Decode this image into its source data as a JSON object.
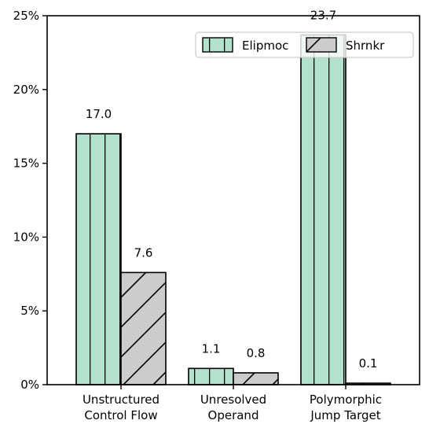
{
  "chart_data": {
    "type": "bar",
    "categories": [
      "Unstructured\nControl Flow",
      "Unresolved\nOperand",
      "Polymorphic\nJump Target"
    ],
    "series": [
      {
        "name": "Elipmoc",
        "values": [
          17.0,
          1.1,
          23.7
        ],
        "labels": [
          "17.0",
          "1.1",
          "23.7"
        ],
        "color": "#b2e2cd",
        "hatch": "vertical"
      },
      {
        "name": "Shrnkr",
        "values": [
          7.6,
          0.8,
          0.1
        ],
        "labels": [
          "7.6",
          "0.8",
          "0.1"
        ],
        "color": "#cccccc",
        "hatch": "diagonal"
      }
    ],
    "ylim": [
      0,
      25
    ],
    "yticks": [
      0,
      5,
      10,
      15,
      20,
      25
    ],
    "ytick_labels": [
      "0%",
      "5%",
      "10%",
      "15%",
      "20%",
      "25%"
    ],
    "legend_position": "top-right",
    "grid": false
  }
}
